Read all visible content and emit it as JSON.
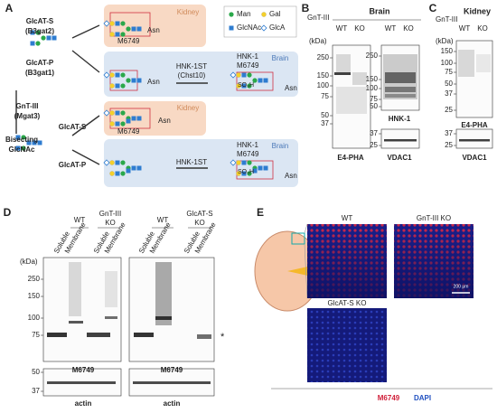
{
  "panel_a": {
    "label": "A",
    "legend": [
      "Man",
      "Gal",
      "GlcNAc",
      "GlcA"
    ],
    "enzymes": {
      "glcat_s_1": "GlcAT-S",
      "glcat_s_1_gene": "(B3gat2)",
      "glcat_p_1": "GlcAT-P",
      "glcat_p_1_gene": "(B3gat1)",
      "gnt3": "GnT-III",
      "gnt3_gene": "(Mgat3)",
      "glcat_s_2": "GlcAT-S",
      "glcat_p_2": "GlcAT-P",
      "bisecting": "Bisecting",
      "bisecting_2": "GlcNAc"
    },
    "asn": "Asn",
    "kidney_top": {
      "tissue": "Kidney",
      "epitope": "M6749"
    },
    "brain_top": {
      "tissue": "Brain",
      "enzyme": "HNK-1ST",
      "enzyme_gene": "(Chst10)",
      "epitope_1": "HNK-1",
      "epitope_2": "M6749",
      "sulfate": "SO₃H"
    },
    "kidney_bottom": {
      "tissue": "Kidney",
      "epitope": "M6749"
    },
    "brain_bottom": {
      "tissue": "Brain",
      "enzyme": "HNK-1ST",
      "epitope_1": "HNK-1",
      "epitope_2": "M6749",
      "sulfate": "SO₃H"
    }
  },
  "panel_b": {
    "label": "B",
    "tissue": "Brain",
    "genotype_label": "GnT-III",
    "lanes": [
      "WT",
      "KO",
      "WT",
      "KO"
    ],
    "unit": "(kDa)",
    "blot_1_ticks": [
      250,
      150,
      100,
      75,
      50,
      37
    ],
    "blot_1_label": "E4-PHA",
    "blot_2_ticks": [
      250,
      150,
      100,
      75,
      50
    ],
    "blot_2_label": "HNK-1",
    "loading_ticks": [
      37,
      25
    ],
    "loading_label": "VDAC1"
  },
  "panel_c": {
    "label": "C",
    "tissue": "Kidney",
    "genotype_label": "GnT-III",
    "lanes": [
      "WT",
      "KO"
    ],
    "unit": "(kDa)",
    "blot_ticks": [
      150,
      100,
      75,
      50,
      37,
      25
    ],
    "blot_label": "E4-PHA",
    "loading_ticks": [
      37,
      25
    ],
    "loading_label": "VDAC1"
  },
  "panel_d": {
    "label": "D",
    "groups": [
      "WT",
      "GnT-III",
      "KO",
      "WT",
      "GlcAT-S",
      "KO"
    ],
    "fractions": [
      "Soluble",
      "Membrane",
      "Soluble",
      "Membrane",
      "Soluble",
      "Membrane",
      "Soluble",
      "Membrane"
    ],
    "unit": "(kDa)",
    "blot_ticks": [
      250,
      150,
      100,
      75
    ],
    "asterisk": "*",
    "blot_labels": [
      "M6749",
      "M6749"
    ],
    "actin_ticks": [
      50,
      37
    ],
    "actin_labels": [
      "actin",
      "actin"
    ]
  },
  "panel_e": {
    "label": "E",
    "images": [
      "WT",
      "GnT-III KO",
      "GlcAT-S KO"
    ],
    "scale_bar": "200 μm",
    "stain_1": "M6749",
    "stain_2": "DAPI"
  }
}
